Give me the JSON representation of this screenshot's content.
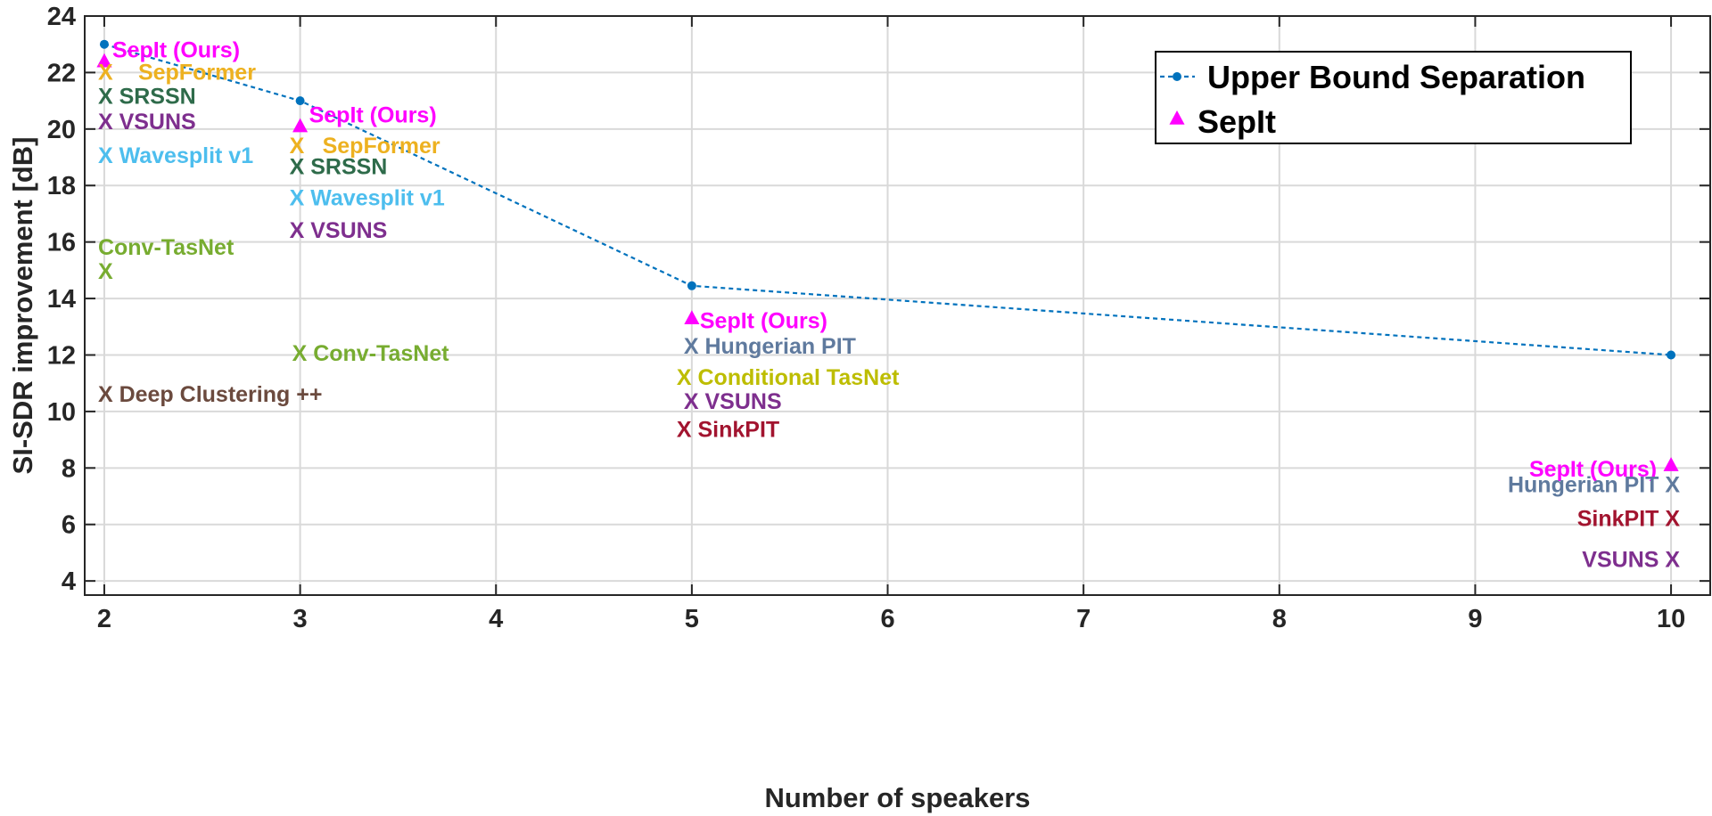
{
  "chart_data": {
    "type": "scatter",
    "xlabel": "Number of speakers",
    "ylabel": "SI-SDR improvement [dB]",
    "xlim": [
      1.9,
      10.2
    ],
    "ylim": [
      3.5,
      24
    ],
    "xticks": [
      2,
      3,
      4,
      5,
      6,
      7,
      8,
      9,
      10
    ],
    "yticks": [
      4,
      6,
      8,
      10,
      12,
      14,
      16,
      18,
      20,
      22,
      24
    ],
    "grid": true,
    "legend_position": "top-right",
    "series": [
      {
        "name": "Upper Bound Separation",
        "style": "dotted-line-with-dots",
        "color": "#0072BD",
        "x": [
          2,
          3,
          5,
          10
        ],
        "y": [
          23.0,
          21.0,
          14.45,
          12.0
        ]
      },
      {
        "name": "SepIt",
        "style": "triangle-markers",
        "color": "#FF00FF",
        "x": [
          2,
          3,
          5,
          10
        ],
        "y": [
          22.4,
          20.1,
          13.3,
          8.1
        ]
      }
    ],
    "annotations": [
      {
        "text": "SepIt (Ours)",
        "x": 2,
        "y": 22.6,
        "color": "#FF00FF"
      },
      {
        "text": "X",
        "x": 2,
        "y": 22.0,
        "color": "#EDB120"
      },
      {
        "text": "SepFormer",
        "x": 2,
        "y": 22.0,
        "color": "#EDB120"
      },
      {
        "text": "X SRSSN",
        "x": 2,
        "y": 21.15,
        "color": "#2E6B4A"
      },
      {
        "text": "X  VSUNS",
        "x": 2,
        "y": 20.25,
        "color": "#7E2F8E"
      },
      {
        "text": "X Wavesplit v1",
        "x": 2,
        "y": 19.05,
        "color": "#4DBEEE"
      },
      {
        "text": "Conv-TasNet",
        "x": 2,
        "y": 15.8,
        "color": "#77AC30"
      },
      {
        "text": "X",
        "x": 2,
        "y": 14.95,
        "color": "#77AC30"
      },
      {
        "text": "X Deep Clustering ++",
        "x": 2,
        "y": 10.6,
        "color": "#6B4A3E"
      },
      {
        "text": "SepIt (Ours)",
        "x": 3,
        "y": 20.3,
        "color": "#FF00FF"
      },
      {
        "text": "X",
        "x": 3,
        "y": 19.4,
        "color": "#EDB120"
      },
      {
        "text": "SepFormer",
        "x": 3,
        "y": 19.4,
        "color": "#EDB120"
      },
      {
        "text": "X SRSSN",
        "x": 3,
        "y": 18.65,
        "color": "#2E6B4A"
      },
      {
        "text": "X Wavesplit v1",
        "x": 3,
        "y": 17.55,
        "color": "#4DBEEE"
      },
      {
        "text": "X   VSUNS",
        "x": 3,
        "y": 16.4,
        "color": "#7E2F8E"
      },
      {
        "text": "X Conv-TasNet",
        "x": 3,
        "y": 12.05,
        "color": "#77AC30"
      },
      {
        "text": "SepIt (Ours)",
        "x": 5,
        "y": 13.2,
        "color": "#FF00FF"
      },
      {
        "text": "X Hungerian PIT",
        "x": 5,
        "y": 12.3,
        "color": "#5F7A9E"
      },
      {
        "text": "X Conditional TasNet",
        "x": 5,
        "y": 11.2,
        "color": "#BDBD00"
      },
      {
        "text": "X  VSUNS",
        "x": 5,
        "y": 10.35,
        "color": "#7E2F8E"
      },
      {
        "text": "X SinkPIT",
        "x": 5,
        "y": 9.35,
        "color": "#A2142F"
      },
      {
        "text": "SepIt (Ours)",
        "x": 10,
        "y": 7.95,
        "color": "#FF00FF"
      },
      {
        "text": "Hungerian PIT  X",
        "x": 10,
        "y": 7.4,
        "color": "#5F7A9E"
      },
      {
        "text": "SinkPIT  X",
        "x": 10,
        "y": 6.2,
        "color": "#A2142F"
      },
      {
        "text": "VSUNS  X",
        "x": 10,
        "y": 4.75,
        "color": "#7E2F8E"
      }
    ]
  }
}
